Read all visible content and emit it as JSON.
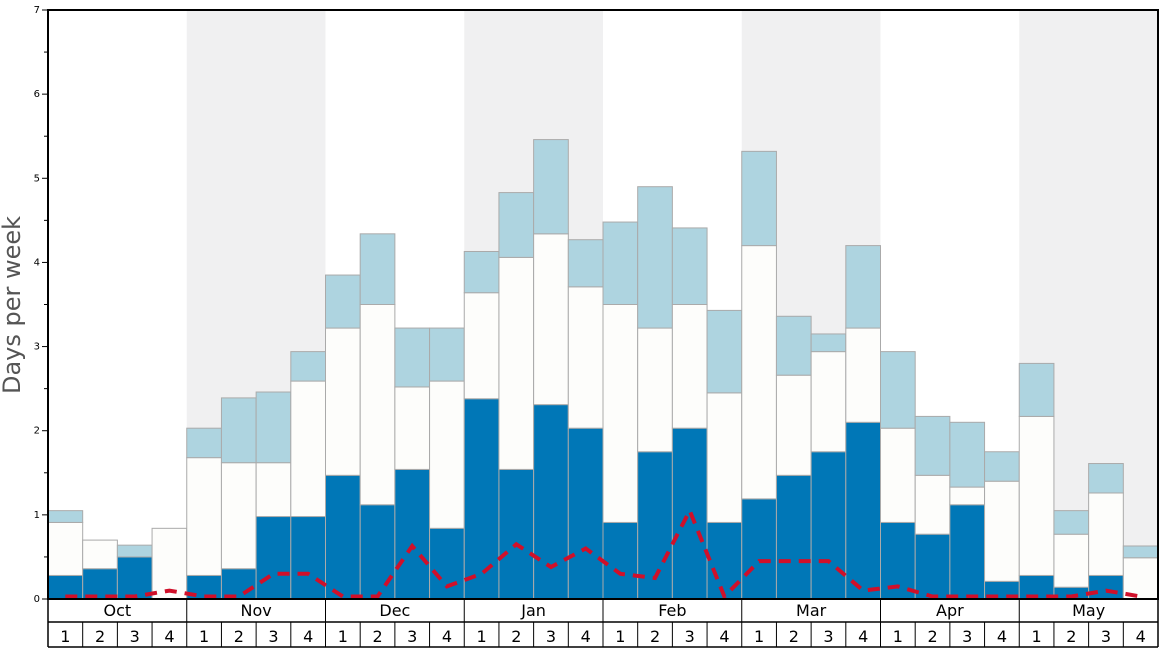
{
  "chart_data": {
    "type": "bar",
    "stacked": true,
    "ylabel": "Days per week",
    "ylim": [
      0,
      7
    ],
    "yticks": [
      "0",
      "1",
      "2",
      "3",
      "4",
      "5",
      "6",
      "7"
    ],
    "months": [
      "Oct",
      "Nov",
      "Dec",
      "Jan",
      "Feb",
      "Mar",
      "Apr",
      "May"
    ],
    "weeks": [
      "1",
      "2",
      "3",
      "4"
    ],
    "shaded_months": [
      "Nov",
      "Jan",
      "Mar",
      "May"
    ],
    "colors": {
      "bottom": "#0077b7",
      "middle": "#fdfdfb",
      "top": "#aed4e0",
      "line": "#d0102a",
      "shade": "#f0f0f1",
      "bar_edge": "#aaaaaa"
    },
    "series": [
      {
        "values": [
          0.28,
          0.36,
          0.5,
          0,
          0.28,
          0.36,
          0.98,
          0.98,
          1.47,
          1.12,
          1.54,
          0.84,
          2.38,
          1.54,
          2.31,
          2.03,
          0.91,
          1.75,
          2.03,
          0.91,
          1.19,
          1.47,
          1.75,
          2.1,
          0.91,
          0.77,
          1.12,
          0.21,
          0.28,
          0.14,
          0.28,
          0
        ]
      },
      {
        "values": [
          0.63,
          0.34,
          0,
          0.84,
          1.4,
          1.26,
          0.64,
          1.61,
          1.75,
          2.38,
          0.98,
          1.75,
          1.26,
          2.52,
          2.03,
          1.68,
          2.59,
          1.47,
          1.47,
          1.54,
          3.01,
          1.19,
          1.19,
          1.12,
          1.12,
          0.7,
          0.21,
          1.19,
          1.89,
          0.63,
          0.98,
          0.49
        ]
      },
      {
        "values": [
          0.14,
          0,
          0.14,
          0,
          0.35,
          0.77,
          0.84,
          0.35,
          0.63,
          0.84,
          0.7,
          0.63,
          0.49,
          0.77,
          1.12,
          0.56,
          0.98,
          1.68,
          0.91,
          0.98,
          1.12,
          0.7,
          0.21,
          0.98,
          0.91,
          0.7,
          0.77,
          0.35,
          0.63,
          0.28,
          0.35,
          0.14
        ]
      },
      {
        "type": "line",
        "style": "dashed",
        "values": [
          0.03,
          0.03,
          0.03,
          0.1,
          0.03,
          0.03,
          0.3,
          0.3,
          0.03,
          0.03,
          0.63,
          0.15,
          0.3,
          0.65,
          0.38,
          0.6,
          0.3,
          0.25,
          1.05,
          0.03,
          0.45,
          0.45,
          0.45,
          0.1,
          0.15,
          0.03,
          0.03,
          0.03,
          0.03,
          0.03,
          0.1,
          0.03
        ]
      }
    ]
  }
}
